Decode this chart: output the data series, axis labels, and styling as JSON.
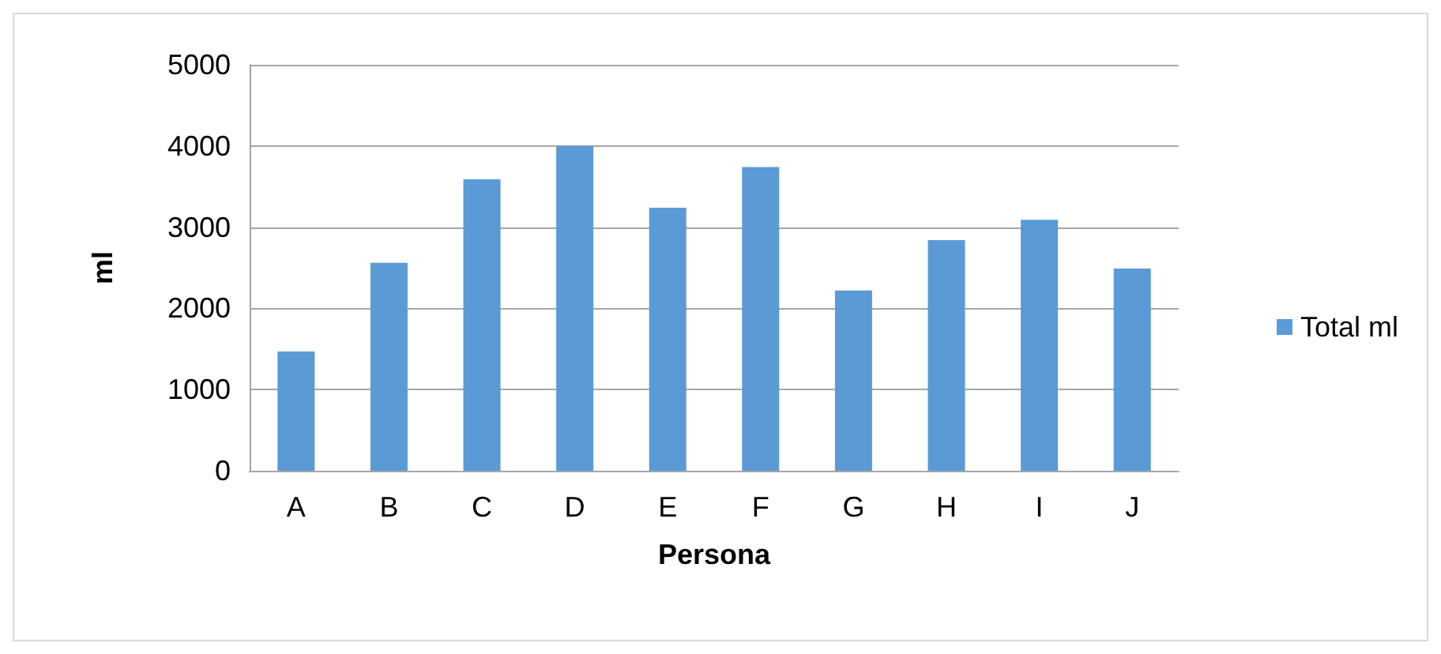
{
  "chart_data": {
    "type": "bar",
    "xlabel": "Persona",
    "ylabel": "ml",
    "categories": [
      "A",
      "B",
      "C",
      "D",
      "E",
      "F",
      "G",
      "H",
      "I",
      "J"
    ],
    "series": [
      {
        "name": "Total ml",
        "color": "#5b9bd5",
        "values": [
          1470,
          2560,
          3590,
          4000,
          3240,
          3740,
          2220,
          2840,
          3090,
          2490
        ]
      }
    ],
    "ylim": [
      0,
      5000
    ],
    "yticks": [
      0,
      1000,
      2000,
      3000,
      4000,
      5000
    ],
    "grid": "y",
    "legend": "right"
  }
}
